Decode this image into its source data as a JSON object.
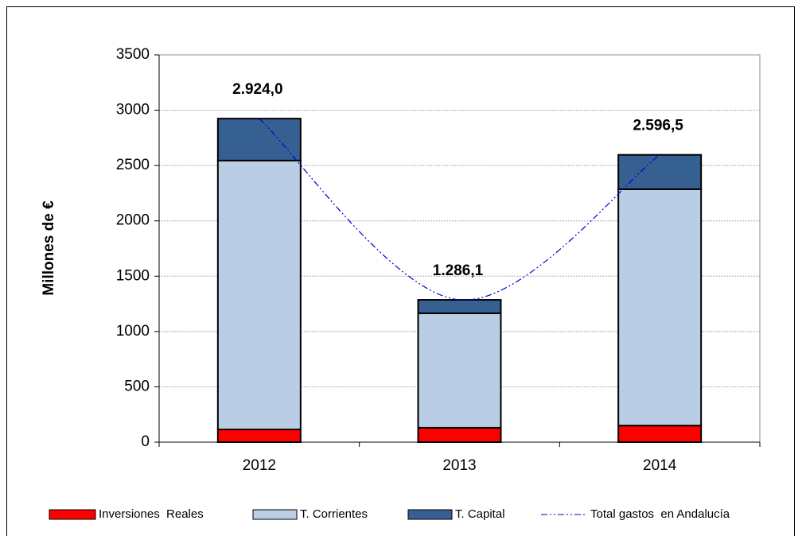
{
  "chart_data": {
    "type": "stacked-bar-line",
    "y_label": "Millones de €",
    "categories": [
      "2012",
      "2013",
      "2014"
    ],
    "series": [
      {
        "name": "Inversiones  Reales",
        "color": "#ff0000",
        "values": [
          115,
          130,
          150
        ]
      },
      {
        "name": "T. Corrientes",
        "color": "#b9cde5",
        "values": [
          2430,
          1035,
          2136
        ]
      },
      {
        "name": "T. Capital",
        "color": "#376092",
        "values": [
          379,
          121.1,
          310.5
        ]
      },
      {
        "name": "Total gastos  en Andalucía",
        "color": "#0000cc",
        "type": "line",
        "values": [
          2924.0,
          1286.1,
          2596.5
        ],
        "value_labels": [
          "2.924,0",
          "1.286,1",
          "2.596,5"
        ]
      }
    ],
    "ylim": [
      0,
      3500
    ],
    "yticks": [
      0,
      500,
      1000,
      1500,
      2000,
      2500,
      3000,
      3500
    ],
    "grid": true
  }
}
